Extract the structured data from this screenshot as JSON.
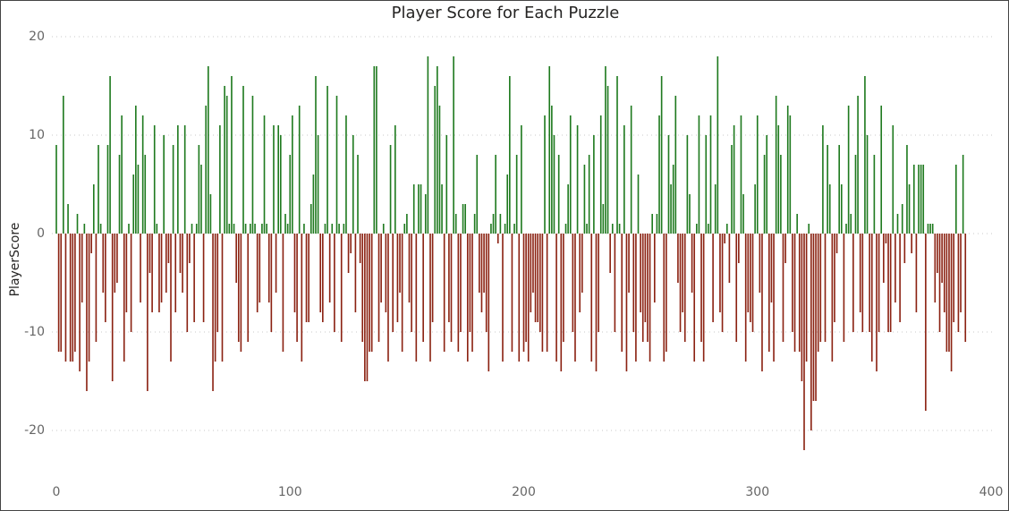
{
  "chart_data": {
    "type": "bar",
    "title": "Player Score for Each Puzzle",
    "y_label": "PlayerScore",
    "positive_color": "#1f7a1f",
    "negative_color": "#8b2212",
    "grid": true,
    "xlim": [
      0,
      400
    ],
    "xticks": [
      0,
      100,
      200,
      300,
      400
    ],
    "ylim": [
      -24,
      21
    ],
    "yticks": [
      -20,
      -10,
      0,
      10,
      20
    ],
    "x": [
      0,
      1,
      2,
      3,
      4,
      5,
      6,
      7,
      8,
      9,
      10,
      11,
      12,
      13,
      14,
      15,
      16,
      17,
      18,
      19,
      20,
      21,
      22,
      23,
      24,
      25,
      26,
      27,
      28,
      29,
      30,
      31,
      32,
      33,
      34,
      35,
      36,
      37,
      38,
      39,
      40,
      41,
      42,
      43,
      44,
      45,
      46,
      47,
      48,
      49,
      50,
      51,
      52,
      53,
      54,
      55,
      56,
      57,
      58,
      59,
      60,
      61,
      62,
      63,
      64,
      65,
      66,
      67,
      68,
      69,
      70,
      71,
      72,
      73,
      74,
      75,
      76,
      77,
      78,
      79,
      80,
      81,
      82,
      83,
      84,
      85,
      86,
      87,
      88,
      89,
      90,
      91,
      92,
      93,
      94,
      95,
      96,
      97,
      98,
      99,
      100,
      101,
      102,
      103,
      104,
      105,
      106,
      107,
      108,
      109,
      110,
      111,
      112,
      113,
      114,
      115,
      116,
      117,
      118,
      119,
      120,
      121,
      122,
      123,
      124,
      125,
      126,
      127,
      128,
      129,
      130,
      131,
      132,
      133,
      134,
      135,
      136,
      137,
      138,
      139,
      140,
      141,
      142,
      143,
      144,
      145,
      146,
      147,
      148,
      149,
      150,
      151,
      152,
      153,
      154,
      155,
      156,
      157,
      158,
      159,
      160,
      161,
      162,
      163,
      164,
      165,
      166,
      167,
      168,
      169,
      170,
      171,
      172,
      173,
      174,
      175,
      176,
      177,
      178,
      179,
      180,
      181,
      182,
      183,
      184,
      185,
      186,
      187,
      188,
      189,
      190,
      191,
      192,
      193,
      194,
      195,
      196,
      197,
      198,
      199,
      200,
      201,
      202,
      203,
      204,
      205,
      206,
      207,
      208,
      209,
      210,
      211,
      212,
      213,
      214,
      215,
      216,
      217,
      218,
      219,
      220,
      221,
      222,
      223,
      224,
      225,
      226,
      227,
      228,
      229,
      230,
      231,
      232,
      233,
      234,
      235,
      236,
      237,
      238,
      239,
      240,
      241,
      242,
      243,
      244,
      245,
      246,
      247,
      248,
      249,
      250,
      251,
      252,
      253,
      254,
      255,
      256,
      257,
      258,
      259,
      260,
      261,
      262,
      263,
      264,
      265,
      266,
      267,
      268,
      269,
      270,
      271,
      272,
      273,
      274,
      275,
      276,
      277,
      278,
      279,
      280,
      281,
      282,
      283,
      284,
      285,
      286,
      287,
      288,
      289,
      290,
      291,
      292,
      293,
      294,
      295,
      296,
      297,
      298,
      299,
      300,
      301,
      302,
      303,
      304,
      305,
      306,
      307,
      308,
      309,
      310,
      311,
      312,
      313,
      314,
      315,
      316,
      317,
      318,
      319,
      320,
      321,
      322,
      323,
      324,
      325,
      326,
      327,
      328,
      329,
      330,
      331,
      332,
      333,
      334,
      335,
      336,
      337,
      338,
      339,
      340,
      341,
      342,
      343,
      344,
      345,
      346,
      347,
      348,
      349,
      350,
      351,
      352,
      353,
      354,
      355,
      356,
      357,
      358,
      359,
      360,
      361,
      362,
      363,
      364,
      365,
      366,
      367,
      368,
      369,
      370,
      371,
      372,
      373,
      374,
      375,
      376,
      377,
      378,
      379,
      380,
      381,
      382,
      383,
      384,
      385,
      386,
      387,
      388,
      389
    ],
    "values": [
      9,
      -12,
      -12,
      14,
      -13,
      3,
      -13,
      -13,
      -12,
      2,
      -14,
      -7,
      1,
      -16,
      -13,
      -2,
      5,
      -11,
      9,
      1,
      -6,
      -9,
      9,
      16,
      -15,
      -6,
      -5,
      8,
      12,
      -13,
      -8,
      1,
      -10,
      6,
      13,
      7,
      -7,
      12,
      8,
      -16,
      -4,
      -8,
      11,
      1,
      -8,
      -7,
      10,
      -6,
      -3,
      -13,
      9,
      -8,
      11,
      -4,
      -6,
      11,
      -10,
      -3,
      1,
      -9,
      1,
      9,
      7,
      -9,
      13,
      17,
      4,
      -16,
      -13,
      -10,
      11,
      -13,
      15,
      14,
      1,
      16,
      1,
      -5,
      -11,
      -12,
      15,
      1,
      -11,
      1,
      14,
      1,
      -8,
      -7,
      1,
      12,
      1,
      -7,
      -10,
      11,
      -6,
      11,
      10,
      -12,
      2,
      1,
      8,
      12,
      -8,
      -11,
      13,
      -13,
      1,
      -9,
      -9,
      3,
      6,
      16,
      10,
      -8,
      -9,
      1,
      15,
      -7,
      1,
      -10,
      14,
      1,
      -11,
      1,
      12,
      -4,
      -2,
      10,
      -8,
      8,
      -3,
      -11,
      -15,
      -15,
      -12,
      -12,
      17,
      17,
      -11,
      -7,
      1,
      -8,
      -13,
      9,
      -10,
      11,
      -9,
      -6,
      -12,
      1,
      2,
      -7,
      -10,
      5,
      -13,
      5,
      5,
      -11,
      4,
      18,
      -13,
      -9,
      15,
      17,
      13,
      5,
      -12,
      10,
      -9,
      -11,
      18,
      2,
      -12,
      -10,
      3,
      3,
      -13,
      -10,
      -12,
      2,
      8,
      -6,
      -8,
      -6,
      -10,
      -14,
      1,
      2,
      8,
      -1,
      2,
      -13,
      1,
      6,
      16,
      -12,
      1,
      8,
      -13,
      11,
      -12,
      -11,
      -13,
      -8,
      -6,
      -9,
      -9,
      -10,
      -12,
      12,
      -12,
      17,
      13,
      10,
      -13,
      8,
      -14,
      -11,
      1,
      5,
      12,
      -10,
      -13,
      11,
      -8,
      -6,
      7,
      1,
      8,
      -13,
      10,
      -14,
      -10,
      12,
      3,
      17,
      15,
      -4,
      1,
      -10,
      16,
      1,
      -12,
      11,
      -14,
      -6,
      13,
      -10,
      -13,
      6,
      -8,
      -11,
      -9,
      -11,
      -13,
      2,
      -7,
      2,
      12,
      16,
      -13,
      -12,
      10,
      5,
      7,
      14,
      -5,
      -10,
      -8,
      -11,
      10,
      4,
      -6,
      -13,
      1,
      12,
      -11,
      -13,
      10,
      1,
      12,
      -9,
      5,
      18,
      -8,
      -10,
      -1,
      1,
      -5,
      9,
      11,
      -11,
      -3,
      12,
      4,
      -13,
      -8,
      -9,
      -10,
      5,
      12,
      -6,
      -14,
      8,
      10,
      -12,
      -7,
      -13,
      14,
      11,
      8,
      -11,
      -3,
      13,
      12,
      -10,
      -12,
      2,
      -12,
      -15,
      -22,
      -13,
      1,
      -20,
      -17,
      -17,
      -12,
      -11,
      11,
      -11,
      9,
      5,
      -13,
      -9,
      -2,
      9,
      5,
      -11,
      1,
      13,
      2,
      -10,
      8,
      14,
      -8,
      -10,
      16,
      10,
      -10,
      -13,
      8,
      -14,
      -10,
      13,
      -5,
      -1,
      -10,
      -10,
      11,
      -7,
      2,
      -9,
      3,
      -3,
      9,
      5,
      -2,
      7,
      -8,
      7,
      7,
      7,
      -18,
      1,
      1,
      1,
      -7,
      -4,
      -10,
      -5,
      -8,
      -12,
      -12,
      -14,
      -9,
      7,
      -10,
      -8,
      8,
      -11
    ]
  }
}
